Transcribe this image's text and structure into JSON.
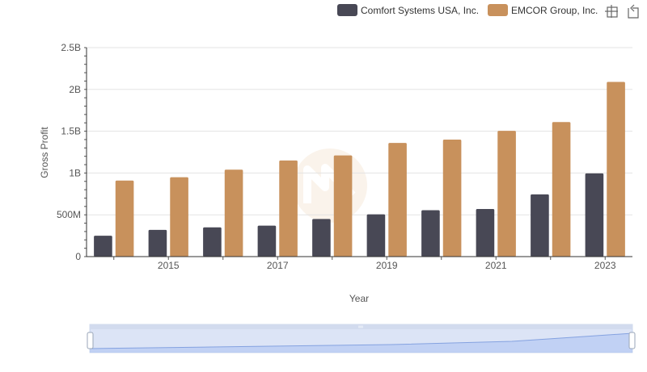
{
  "chart_data": {
    "type": "bar",
    "title": "",
    "xlabel": "Year",
    "ylabel": "Gross Profit",
    "ylim": [
      0,
      2500000000
    ],
    "ytick_values": [
      0,
      500000000,
      1000000000,
      1500000000,
      2000000000,
      2500000000
    ],
    "ytick_labels": [
      "0",
      "500M",
      "1B",
      "1.5B",
      "2B",
      "2.5B"
    ],
    "categories": [
      "2014",
      "2015",
      "2016",
      "2017",
      "2018",
      "2019",
      "2020",
      "2021",
      "2022",
      "2023"
    ],
    "xtick_labels": [
      "",
      "2015",
      "",
      "2017",
      "",
      "2019",
      "",
      "2021",
      "",
      "2023"
    ],
    "grid": true,
    "legend_position": "top-right",
    "series": [
      {
        "name": "Comfort Systems USA, Inc.",
        "color": "#484855",
        "values": [
          250000000,
          320000000,
          350000000,
          370000000,
          450000000,
          505000000,
          555000000,
          570000000,
          745000000,
          995000000
        ]
      },
      {
        "name": "EMCOR Group, Inc.",
        "color": "#c8915c",
        "values": [
          910000000,
          950000000,
          1040000000,
          1150000000,
          1210000000,
          1360000000,
          1400000000,
          1505000000,
          1610000000,
          2090000000
        ]
      }
    ]
  },
  "toolbar": {
    "icons": [
      "zoom-select-icon",
      "zoom-reset-icon"
    ]
  },
  "slider": {
    "range_start": 0,
    "range_end": 1
  }
}
